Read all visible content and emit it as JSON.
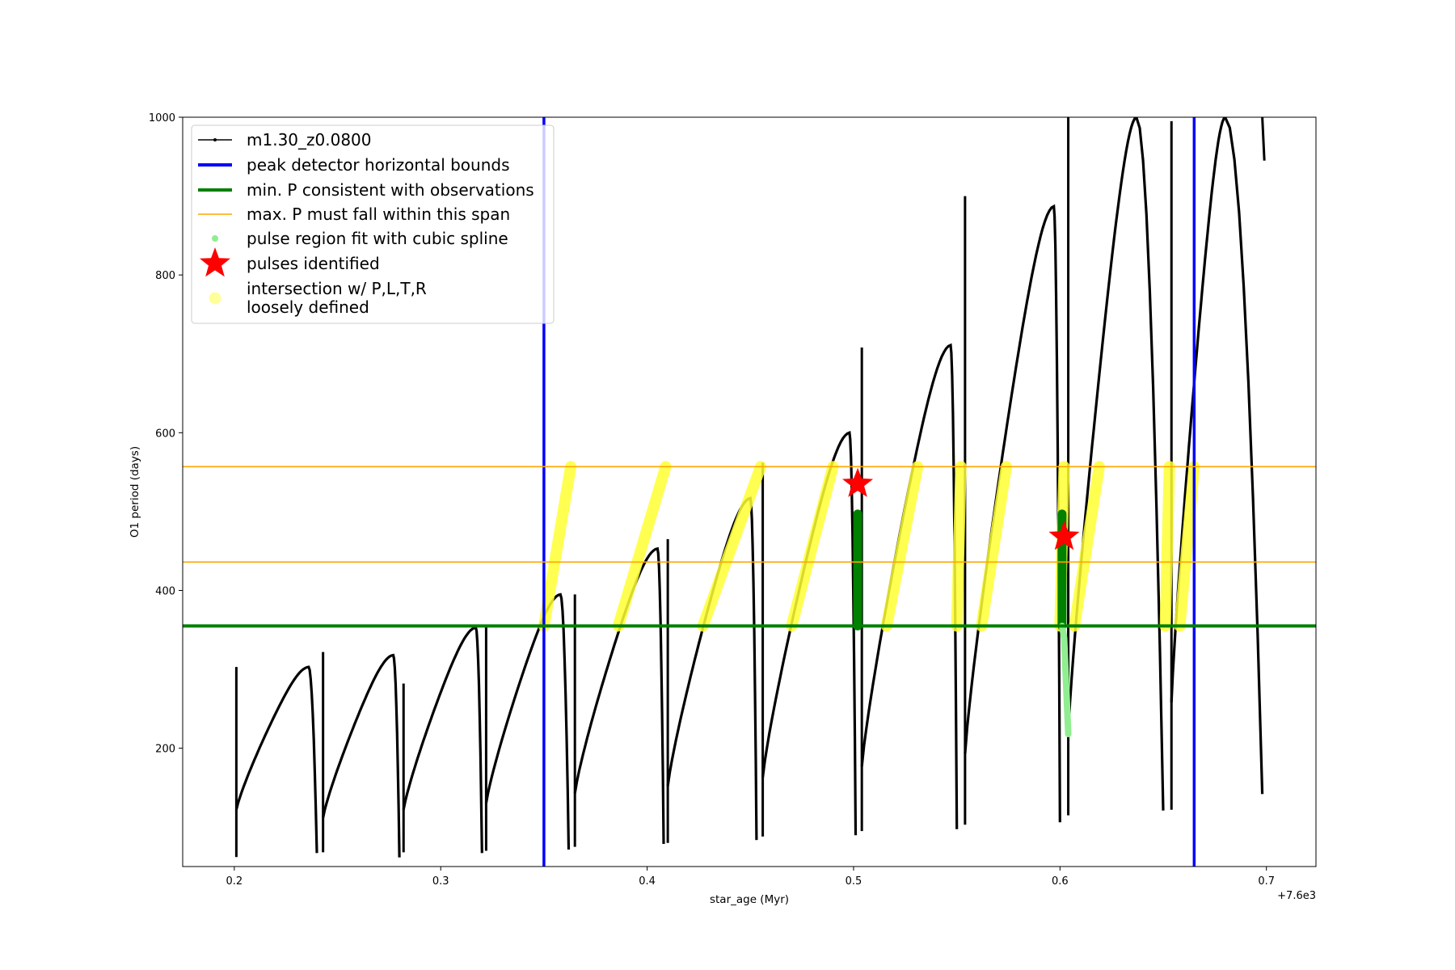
{
  "chart_data": {
    "type": "scatter",
    "title": "",
    "xlabel": "star_age (Myr)",
    "ylabel": "O1 period (days)",
    "x_offset_label": "+7.6e3",
    "xlim": [
      0.175,
      0.724
    ],
    "ylim": [
      50,
      1000
    ],
    "xticks": [
      0.2,
      0.3,
      0.4,
      0.5,
      0.6,
      0.7
    ],
    "xtick_labels": [
      "0.2",
      "0.3",
      "0.4",
      "0.5",
      "0.6",
      "0.7"
    ],
    "yticks": [
      200,
      400,
      600,
      800,
      1000
    ],
    "ytick_labels": [
      "200",
      "400",
      "600",
      "800",
      "1000"
    ],
    "grid": false,
    "legend_position": "upper-left",
    "legend": [
      {
        "label": "m1.30_z0.0800",
        "color": "#000000",
        "kind": "line-marker"
      },
      {
        "label": "peak detector horizontal bounds",
        "color": "#0000ff",
        "kind": "thick-line"
      },
      {
        "label": "min. P consistent with observations",
        "color": "#008000",
        "kind": "thick-line"
      },
      {
        "label": "max. P must fall within this span",
        "color": "#ffa500",
        "kind": "thin-line"
      },
      {
        "label": "pulse region fit with cubic spline",
        "color": "#90ee90",
        "kind": "dot"
      },
      {
        "label": "pulses identified",
        "color": "#ff0000",
        "kind": "star"
      },
      {
        "label": "intersection w/ P,L,T,R\nloosely defined",
        "color": "#ffff99",
        "kind": "big-dot"
      }
    ],
    "peak_detector_bounds_x": [
      0.35,
      0.665
    ],
    "min_period": 355,
    "max_period_span": [
      436,
      557
    ],
    "series": [
      {
        "name": "m1.30_z0.0800",
        "color": "#000000",
        "cycles": [
          {
            "start": 0.201,
            "end": 0.24,
            "lo": 122,
            "peak": 303,
            "peak_x": 0.236,
            "spike_high": 303,
            "spike_low": 62
          },
          {
            "start": 0.243,
            "end": 0.28,
            "lo": 112,
            "peak": 318,
            "peak_x": 0.277,
            "spike_high": 322,
            "spike_low": 68
          },
          {
            "start": 0.282,
            "end": 0.32,
            "lo": 122,
            "peak": 353,
            "peak_x": 0.317,
            "spike_high": 282,
            "spike_low": 68
          },
          {
            "start": 0.322,
            "end": 0.362,
            "lo": 130,
            "peak": 395,
            "peak_x": 0.358,
            "spike_high": 356,
            "spike_low": 70
          },
          {
            "start": 0.365,
            "end": 0.408,
            "lo": 143,
            "peak": 453,
            "peak_x": 0.405,
            "spike_high": 395,
            "spike_low": 75
          },
          {
            "start": 0.41,
            "end": 0.453,
            "lo": 152,
            "peak": 517,
            "peak_x": 0.45,
            "spike_high": 465,
            "spike_low": 80
          },
          {
            "start": 0.456,
            "end": 0.501,
            "lo": 163,
            "peak": 600,
            "peak_x": 0.498,
            "spike_high": 562,
            "spike_low": 88
          },
          {
            "start": 0.504,
            "end": 0.55,
            "lo": 177,
            "peak": 711,
            "peak_x": 0.547,
            "spike_high": 708,
            "spike_low": 95
          },
          {
            "start": 0.554,
            "end": 0.6,
            "lo": 193,
            "peak": 887,
            "peak_x": 0.597,
            "spike_high": 900,
            "spike_low": 103
          },
          {
            "start": 0.604,
            "end": 0.65,
            "lo": 220,
            "peak": 1000,
            "peak_x": 0.637,
            "spike_high": 1000,
            "spike_low": 115
          },
          {
            "start": 0.654,
            "end": 0.698,
            "lo": 258,
            "peak": 1000,
            "peak_x": 0.68,
            "spike_high": 995,
            "spike_low": 122
          }
        ],
        "tail_end": [
          0.699,
          945
        ]
      }
    ],
    "intersection_segments": [
      [
        0.35,
        0.363
      ],
      [
        0.386,
        0.409
      ],
      [
        0.427,
        0.455
      ],
      [
        0.47,
        0.49
      ],
      [
        0.516,
        0.531
      ],
      [
        0.55,
        0.552
      ],
      [
        0.562,
        0.574
      ],
      [
        0.6,
        0.602
      ],
      [
        0.607,
        0.619
      ],
      [
        0.651,
        0.653
      ],
      [
        0.658,
        0.665
      ]
    ],
    "spline_regions": [
      {
        "x": 0.502,
        "y_range": [
          355,
          497
        ],
        "fit_color": "#008000"
      },
      {
        "x": 0.601,
        "y_range": [
          355,
          497
        ],
        "fit_color": "#008000",
        "tail": [
          [
            0.602,
            340
          ],
          [
            0.604,
            218
          ]
        ]
      }
    ],
    "pulses": [
      {
        "x": 0.502,
        "y": 535
      },
      {
        "x": 0.602,
        "y": 468
      }
    ]
  }
}
